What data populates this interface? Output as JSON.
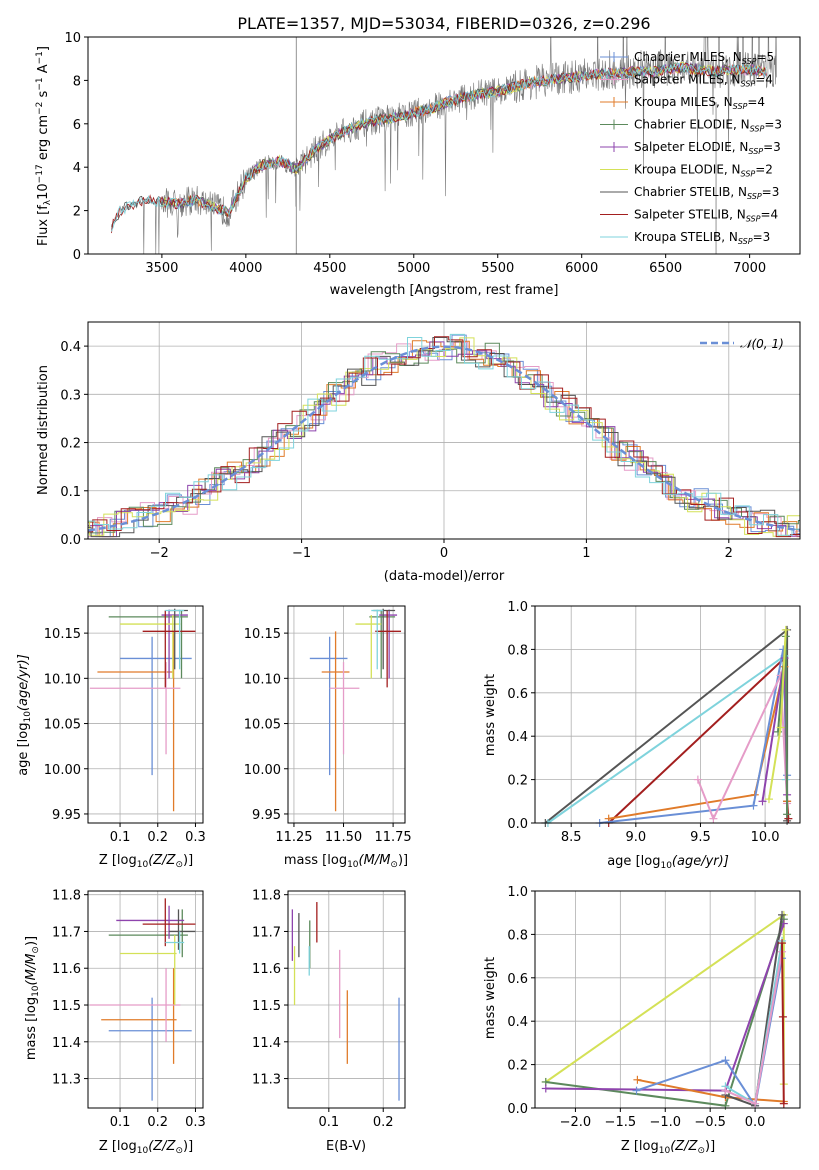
{
  "colors": {
    "Chabrier MILES": "#6a8fd6",
    "Salpeter MILES": "#e59cc8",
    "Kroupa MILES": "#e07b2a",
    "Chabrier ELODIE": "#5c8a5c",
    "Salpeter ELODIE": "#8e44ad",
    "Kroupa ELODIE": "#d4e157",
    "Chabrier STELIB": "#555555",
    "Salpeter STELIB": "#a31f1f",
    "Kroupa STELIB": "#7fd3dc",
    "gaussian": "#6a8fd6"
  },
  "chart_data": [
    {
      "type": "line",
      "title": "PLATE=1357, MJD=53034, FIBERID=0326, z=0.296",
      "xlabel": "wavelength [Angstrom, rest frame]",
      "ylabel_main": "Flux [f",
      "ylabel_sub": "λ",
      "ylabel_rest": "10",
      "ylabel_exp": "−17",
      "ylabel_unit": " erg cm",
      "ylabel_unit_exp": "−2",
      "ylabel_s": " s",
      "ylabel_s_exp": "−1",
      "ylabel_A": " A",
      "ylabel_A_exp": "−1",
      "ylabel_end": "]",
      "xlim": [
        3060,
        7300
      ],
      "ylim": [
        0,
        10
      ],
      "xticks": [
        3500,
        4000,
        4500,
        5000,
        5500,
        6000,
        6500,
        7000
      ],
      "yticks": [
        0,
        2,
        4,
        6,
        8,
        10
      ],
      "continuum": {
        "x": [
          3200,
          3250,
          3300,
          3400,
          3500,
          3600,
          3700,
          3800,
          3900,
          4000,
          4100,
          4200,
          4300,
          4400,
          4500,
          4600,
          4700,
          4800,
          4900,
          5000,
          5100,
          5200,
          5300,
          5400,
          5500,
          5600,
          5700,
          5800,
          5900,
          6000,
          6100,
          6200,
          6300,
          6400,
          6500,
          6600,
          6700,
          6800,
          6900,
          7000,
          7100
        ],
        "y": [
          1.2,
          2.0,
          2.2,
          2.5,
          2.4,
          2.3,
          2.5,
          2.2,
          1.9,
          3.5,
          4.1,
          4.3,
          3.9,
          4.7,
          5.3,
          5.7,
          6.0,
          6.2,
          6.3,
          6.5,
          6.7,
          7.0,
          7.2,
          7.4,
          7.5,
          7.7,
          7.9,
          8.0,
          8.1,
          8.2,
          8.3,
          8.3,
          8.4,
          8.4,
          8.5,
          8.6,
          8.5,
          8.4,
          8.5,
          8.5,
          8.4
        ]
      },
      "legend_position": "upper right",
      "legend": [
        {
          "label": "Chabrier MILES, N",
          "sub": "SSP",
          "tail": "=5"
        },
        {
          "label": "Salpeter MILES, N",
          "sub": "SSP",
          "tail": "=4"
        },
        {
          "label": "Kroupa MILES, N",
          "sub": "SSP",
          "tail": "=4"
        },
        {
          "label": "Chabrier ELODIE, N",
          "sub": "SSP",
          "tail": "=3"
        },
        {
          "label": "Salpeter ELODIE, N",
          "sub": "SSP",
          "tail": "=3"
        },
        {
          "label": "Kroupa ELODIE, N",
          "sub": "SSP",
          "tail": "=2"
        },
        {
          "label": "Chabrier STELIB, N",
          "sub": "SSP",
          "tail": "=3"
        },
        {
          "label": "Salpeter STELIB, N",
          "sub": "SSP",
          "tail": "=4"
        },
        {
          "label": "Kroupa STELIB, N",
          "sub": "SSP",
          "tail": "=3"
        }
      ]
    },
    {
      "type": "line",
      "xlabel": "(data-model)/error",
      "ylabel": "Normed distribution",
      "xlim": [
        -2.5,
        2.5
      ],
      "ylim": [
        0,
        0.45
      ],
      "xticks": [
        -2,
        -1,
        0,
        1,
        2
      ],
      "yticks": [
        0.0,
        0.1,
        0.2,
        0.3,
        0.4
      ],
      "grid": true,
      "legend_gauss": "𝒩(0, 1)",
      "bin_width": 0.1
    },
    {
      "type": "scatter",
      "xlabel": "Z [log",
      "xlabel_sub": "10",
      "xlabel_tail": "(Z/Z",
      "xlabel_sun": "⊙",
      "xlabel_end": ")]",
      "ylabel": "age  [log",
      "ylabel_sub": "10",
      "ylabel_tail": "(age/yr)]",
      "xlim": [
        0.015,
        0.32
      ],
      "ylim": [
        9.94,
        10.18
      ],
      "xticks": [
        0.1,
        0.2,
        0.3
      ],
      "yticks": [
        9.95,
        10.0,
        10.05,
        10.1,
        10.15
      ],
      "points": [
        {
          "series": "Chabrier MILES",
          "x": 0.185,
          "y": 10.122,
          "xerr": [
            0.1,
            0.29
          ],
          "yerr": [
            9.993,
            10.146
          ]
        },
        {
          "series": "Kroupa MILES",
          "x": 0.242,
          "y": 10.107,
          "xerr": [
            0.04,
            0.24
          ],
          "yerr": [
            9.953,
            10.152
          ]
        },
        {
          "series": "Salpeter MILES",
          "x": 0.222,
          "y": 10.089,
          "xerr": [
            0.02,
            0.26
          ],
          "yerr": [
            10.016,
            10.118
          ]
        },
        {
          "series": "Chabrier ELODIE",
          "x": 0.263,
          "y": 10.168,
          "xerr": [
            0.07,
            0.28
          ],
          "yerr": [
            10.1,
            10.175
          ]
        },
        {
          "series": "Salpeter ELODIE",
          "x": 0.23,
          "y": 10.17,
          "xerr": [
            0.21,
            0.28
          ],
          "yerr": [
            10.1,
            10.176
          ]
        },
        {
          "series": "Kroupa ELODIE",
          "x": 0.24,
          "y": 10.16,
          "xerr": [
            0.1,
            0.26
          ],
          "yerr": [
            10.1,
            10.17
          ]
        },
        {
          "series": "Chabrier STELIB",
          "x": 0.245,
          "y": 10.175,
          "xerr": [
            0.23,
            0.28
          ],
          "yerr": [
            10.11,
            10.177
          ]
        },
        {
          "series": "Salpeter STELIB",
          "x": 0.22,
          "y": 10.152,
          "xerr": [
            0.16,
            0.3
          ],
          "yerr": [
            10.09,
            10.175
          ]
        },
        {
          "series": "Kroupa STELIB",
          "x": 0.258,
          "y": 10.175,
          "xerr": [
            0.22,
            0.27
          ],
          "yerr": [
            10.11,
            10.176
          ]
        }
      ]
    },
    {
      "type": "scatter",
      "xlabel": "mass [log",
      "xlabel_sub": "10",
      "xlabel_tail": "(M/M",
      "xlabel_sun": "⊙",
      "xlabel_end": ")]",
      "xlim": [
        11.22,
        11.81
      ],
      "ylim": [
        9.94,
        10.18
      ],
      "xticks": [
        11.25,
        11.5,
        11.75
      ],
      "yticks": [
        9.95,
        10.0,
        10.05,
        10.1,
        10.15
      ],
      "points": [
        {
          "series": "Chabrier MILES",
          "x": 11.43,
          "y": 10.122,
          "xerr": [
            11.33,
            11.52
          ],
          "yerr": [
            9.993,
            10.146
          ]
        },
        {
          "series": "Kroupa MILES",
          "x": 11.46,
          "y": 10.107,
          "xerr": [
            11.39,
            11.53
          ],
          "yerr": [
            9.953,
            10.152
          ]
        },
        {
          "series": "Salpeter MILES",
          "x": 11.5,
          "y": 10.089,
          "xerr": [
            11.43,
            11.58
          ],
          "yerr": [
            10.016,
            10.118
          ]
        },
        {
          "series": "Chabrier ELODIE",
          "x": 11.69,
          "y": 10.168,
          "xerr": [
            11.63,
            11.76
          ],
          "yerr": [
            10.1,
            10.175
          ]
        },
        {
          "series": "Salpeter ELODIE",
          "x": 11.73,
          "y": 10.17,
          "xerr": [
            11.68,
            11.77
          ],
          "yerr": [
            10.1,
            10.176
          ]
        },
        {
          "series": "Kroupa ELODIE",
          "x": 11.64,
          "y": 10.16,
          "xerr": [
            11.56,
            11.69
          ],
          "yerr": [
            10.1,
            10.17
          ]
        },
        {
          "series": "Chabrier STELIB",
          "x": 11.7,
          "y": 10.175,
          "xerr": [
            11.65,
            11.76
          ],
          "yerr": [
            10.11,
            10.177
          ]
        },
        {
          "series": "Salpeter STELIB",
          "x": 11.72,
          "y": 10.152,
          "xerr": [
            11.66,
            11.79
          ],
          "yerr": [
            10.09,
            10.175
          ]
        },
        {
          "series": "Kroupa STELIB",
          "x": 11.67,
          "y": 10.175,
          "xerr": [
            11.64,
            11.7
          ],
          "yerr": [
            10.11,
            10.176
          ]
        }
      ]
    },
    {
      "type": "line",
      "xlabel": "age  [log",
      "xlabel_sub": "10",
      "xlabel_tail": "(age/yr)]",
      "ylabel": "mass weight",
      "xlim": [
        8.22,
        10.27
      ],
      "ylim": [
        0,
        1
      ],
      "xticks": [
        8.5,
        9.0,
        9.5,
        10.0
      ],
      "yticks": [
        0.0,
        0.2,
        0.4,
        0.6,
        0.8,
        1.0
      ],
      "grid": true,
      "series": [
        {
          "name": "Chabrier STELIB",
          "x": [
            8.3,
            10.17,
            10.17
          ],
          "y": [
            0.0,
            0.89,
            0.01
          ]
        },
        {
          "name": "Kroupa STELIB",
          "x": [
            8.32,
            10.15,
            10.16
          ],
          "y": [
            0.0,
            0.77,
            0.2
          ]
        },
        {
          "name": "Salpeter STELIB",
          "x": [
            8.79,
            10.15,
            10.17,
            10.18
          ],
          "y": [
            0.0,
            0.76,
            0.1,
            0.02
          ]
        },
        {
          "name": "Kroupa MILES",
          "x": [
            8.79,
            9.92,
            10.15,
            10.17
          ],
          "y": [
            0.02,
            0.13,
            0.72,
            0.1
          ]
        },
        {
          "name": "Chabrier MILES",
          "x": [
            8.72,
            9.91,
            10.14,
            10.17
          ],
          "y": [
            0.0,
            0.08,
            0.8,
            0.22
          ]
        },
        {
          "name": "Salpeter MILES",
          "x": [
            9.48,
            9.6,
            10.12,
            10.17
          ],
          "y": [
            0.2,
            0.02,
            0.68,
            0.09
          ]
        },
        {
          "name": "Salpeter ELODIE",
          "x": [
            9.98,
            10.15,
            10.17
          ],
          "y": [
            0.1,
            0.76,
            0.13
          ]
        },
        {
          "name": "Chabrier ELODIE",
          "x": [
            10.1,
            10.16,
            10.17
          ],
          "y": [
            0.42,
            0.86,
            0.04
          ]
        },
        {
          "name": "Kroupa ELODIE",
          "x": [
            10.03,
            10.12,
            10.16
          ],
          "y": [
            0.11,
            0.44,
            0.89
          ]
        }
      ]
    },
    {
      "type": "scatter",
      "xlabel": "Z [log",
      "xlabel_sub": "10",
      "xlabel_tail": "(Z/Z",
      "xlabel_sun": "⊙",
      "xlabel_end": ")]",
      "ylabel": "mass [log",
      "ylabel_sub": "10",
      "ylabel_tail": "(M/M",
      "ylabel_sun": "⊙",
      "ylabel_end": ")]",
      "xlim": [
        0.015,
        0.32
      ],
      "ylim": [
        11.22,
        11.81
      ],
      "xticks": [
        0.1,
        0.2,
        0.3
      ],
      "yticks": [
        11.3,
        11.4,
        11.5,
        11.6,
        11.7,
        11.8
      ],
      "points": [
        {
          "series": "Chabrier MILES",
          "x": 0.185,
          "y": 11.43,
          "xerr": [
            0.07,
            0.29
          ],
          "yerr": [
            11.24,
            11.52
          ]
        },
        {
          "series": "Kroupa MILES",
          "x": 0.242,
          "y": 11.46,
          "xerr": [
            0.05,
            0.25
          ],
          "yerr": [
            11.34,
            11.6
          ]
        },
        {
          "series": "Salpeter MILES",
          "x": 0.222,
          "y": 11.5,
          "xerr": [
            0.02,
            0.26
          ],
          "yerr": [
            11.4,
            11.6
          ]
        },
        {
          "series": "Chabrier ELODIE",
          "x": 0.265,
          "y": 11.69,
          "xerr": [
            0.07,
            0.28
          ],
          "yerr": [
            11.63,
            11.76
          ]
        },
        {
          "series": "Salpeter ELODIE",
          "x": 0.23,
          "y": 11.73,
          "xerr": [
            0.09,
            0.27
          ],
          "yerr": [
            11.68,
            11.77
          ]
        },
        {
          "series": "Kroupa ELODIE",
          "x": 0.245,
          "y": 11.64,
          "xerr": [
            0.1,
            0.25
          ],
          "yerr": [
            11.5,
            11.69
          ]
        },
        {
          "series": "Chabrier STELIB",
          "x": 0.255,
          "y": 11.7,
          "xerr": [
            0.23,
            0.3
          ],
          "yerr": [
            11.65,
            11.76
          ]
        },
        {
          "series": "Salpeter STELIB",
          "x": 0.22,
          "y": 11.72,
          "xerr": [
            0.16,
            0.3
          ],
          "yerr": [
            11.66,
            11.79
          ]
        },
        {
          "series": "Kroupa STELIB",
          "x": 0.258,
          "y": 11.67,
          "xerr": [
            0.22,
            0.27
          ],
          "yerr": [
            11.64,
            11.7
          ]
        }
      ]
    },
    {
      "type": "scatter",
      "xlabel": "E(B-V)",
      "xlim": [
        0.025,
        0.24
      ],
      "ylim": [
        11.22,
        11.81
      ],
      "xticks": [
        0.1,
        0.2
      ],
      "yticks": [
        11.3,
        11.4,
        11.5,
        11.6,
        11.7,
        11.8
      ],
      "points": [
        {
          "series": "Chabrier MILES",
          "x": 0.229,
          "y": 11.43,
          "yerr": [
            11.24,
            11.52
          ]
        },
        {
          "series": "Kroupa MILES",
          "x": 0.134,
          "y": 11.46,
          "yerr": [
            11.34,
            11.54
          ]
        },
        {
          "series": "Salpeter MILES",
          "x": 0.12,
          "y": 11.5,
          "yerr": [
            11.41,
            11.65
          ]
        },
        {
          "series": "Chabrier ELODIE",
          "x": 0.065,
          "y": 11.69,
          "yerr": [
            11.6,
            11.73
          ]
        },
        {
          "series": "Salpeter ELODIE",
          "x": 0.033,
          "y": 11.7,
          "yerr": [
            11.62,
            11.76
          ]
        },
        {
          "series": "Kroupa ELODIE",
          "x": 0.037,
          "y": 11.6,
          "yerr": [
            11.5,
            11.66
          ]
        },
        {
          "series": "Chabrier STELIB",
          "x": 0.045,
          "y": 11.7,
          "yerr": [
            11.63,
            11.75
          ]
        },
        {
          "series": "Salpeter STELIB",
          "x": 0.078,
          "y": 11.73,
          "yerr": [
            11.67,
            11.78
          ]
        },
        {
          "series": "Kroupa STELIB",
          "x": 0.064,
          "y": 11.62,
          "yerr": [
            11.58,
            11.66
          ]
        }
      ]
    },
    {
      "type": "line",
      "xlabel": "Z [log",
      "xlabel_sub": "10",
      "xlabel_tail": "(Z/Z",
      "xlabel_sun": "⊙",
      "xlabel_end": ")]",
      "ylabel": "mass weight",
      "xlim": [
        -2.45,
        0.5
      ],
      "ylim": [
        0,
        1
      ],
      "xticks": [
        -2.0,
        -1.5,
        -1.0,
        -0.5,
        0.0
      ],
      "yticks": [
        0.0,
        0.2,
        0.4,
        0.6,
        0.8,
        1.0
      ],
      "grid": true,
      "series": [
        {
          "name": "Kroupa ELODIE",
          "x": [
            -2.33,
            0.32,
            0.32
          ],
          "y": [
            0.12,
            0.89,
            0.11
          ]
        },
        {
          "name": "Chabrier ELODIE",
          "x": [
            -2.33,
            -0.33,
            0.32
          ],
          "y": [
            0.12,
            0.01,
            0.87
          ]
        },
        {
          "name": "Salpeter ELODIE",
          "x": [
            -2.33,
            -0.33,
            0.32
          ],
          "y": [
            0.09,
            0.08,
            0.85
          ]
        },
        {
          "name": "Kroupa MILES",
          "x": [
            -1.31,
            -0.33,
            0.32
          ],
          "y": [
            0.13,
            0.05,
            0.03
          ]
        },
        {
          "name": "Chabrier MILES",
          "x": [
            -1.32,
            -0.33,
            0.0,
            0.3
          ],
          "y": [
            0.08,
            0.22,
            0.01,
            0.69
          ]
        },
        {
          "name": "Chabrier STELIB",
          "x": [
            -0.33,
            0.0,
            0.3
          ],
          "y": [
            0.06,
            0.01,
            0.89
          ]
        },
        {
          "name": "Kroupa STELIB",
          "x": [
            -0.33,
            0.0,
            0.3
          ],
          "y": [
            0.1,
            0.02,
            0.77
          ]
        },
        {
          "name": "Salpeter MILES",
          "x": [
            -0.33,
            0.0,
            0.3
          ],
          "y": [
            0.08,
            0.02,
            0.72
          ]
        },
        {
          "name": "Salpeter STELIB",
          "x": [
            0.3,
            0.31,
            0.32
          ],
          "y": [
            0.76,
            0.42,
            0.02
          ]
        }
      ]
    }
  ]
}
